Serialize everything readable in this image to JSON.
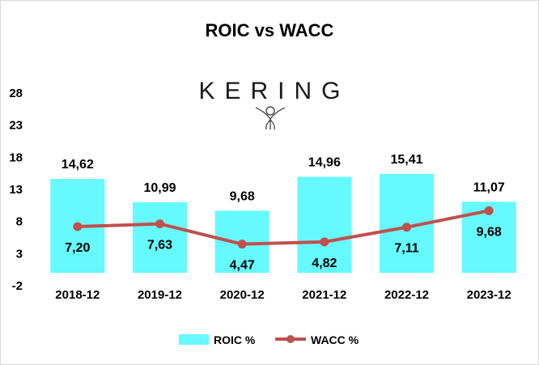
{
  "chart_data": {
    "type": "bar",
    "title": "ROIC vs WACC",
    "categories": [
      "2018-12",
      "2019-12",
      "2020-12",
      "2021-12",
      "2022-12",
      "2023-12"
    ],
    "series": [
      {
        "name": "ROIC %",
        "kind": "bar",
        "color": "#66F9FD",
        "values": [
          14.62,
          10.99,
          9.68,
          14.96,
          15.41,
          11.07
        ],
        "labels": [
          "14,62",
          "10,99",
          "9,68",
          "14,96",
          "15,41",
          "11,07"
        ]
      },
      {
        "name": "WACC %",
        "kind": "line",
        "color": "#C0504D",
        "values": [
          7.2,
          7.63,
          4.47,
          4.82,
          7.11,
          9.68
        ],
        "labels": [
          "7,20",
          "7,63",
          "4,47",
          "4,82",
          "7,11",
          "9,68"
        ]
      }
    ],
    "yticks": [
      "28",
      "23",
      "18",
      "13",
      "8",
      "3",
      "-2"
    ],
    "yTickValues": [
      28,
      23,
      18,
      13,
      8,
      3,
      -2
    ],
    "ylim": [
      -2,
      28
    ],
    "grid": false,
    "legend": "bottom",
    "logo": "KERING"
  }
}
